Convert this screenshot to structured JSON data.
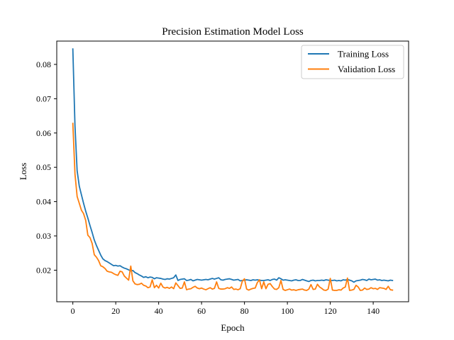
{
  "chart_data": {
    "type": "line",
    "title": "Precision Estimation Model Loss",
    "xlabel": "Epoch",
    "ylabel": "Loss",
    "xlim": [
      -7.5,
      156.5
    ],
    "ylim": [
      0.0108,
      0.0868
    ],
    "xticks": [
      0,
      20,
      40,
      60,
      80,
      100,
      120,
      140
    ],
    "yticks": [
      0.02,
      0.03,
      0.04,
      0.05,
      0.06,
      0.07,
      0.08
    ],
    "xtick_labels": [
      "0",
      "20",
      "40",
      "60",
      "80",
      "100",
      "120",
      "140"
    ],
    "ytick_labels": [
      "0.02",
      "0.03",
      "0.04",
      "0.05",
      "0.06",
      "0.07",
      "0.08"
    ],
    "grid": false,
    "legend_position": "top-right",
    "series": [
      {
        "name": "Training Loss",
        "color": "#1f77b4",
        "x": [
          0,
          1,
          2,
          3,
          4,
          5,
          6,
          7,
          8,
          9,
          10,
          11,
          12,
          13,
          14,
          15,
          16,
          17,
          18,
          19,
          20,
          21,
          22,
          23,
          24,
          25,
          26,
          27,
          28,
          29,
          30,
          31,
          32,
          33,
          34,
          35,
          36,
          37,
          38,
          39,
          40,
          41,
          42,
          43,
          44,
          45,
          46,
          47,
          48,
          49,
          50,
          51,
          52,
          53,
          54,
          55,
          56,
          57,
          58,
          59,
          60,
          61,
          62,
          63,
          64,
          65,
          66,
          67,
          68,
          69,
          70,
          71,
          72,
          73,
          74,
          75,
          76,
          77,
          78,
          79,
          80,
          81,
          82,
          83,
          84,
          85,
          86,
          87,
          88,
          89,
          90,
          91,
          92,
          93,
          94,
          95,
          96,
          97,
          98,
          99,
          100,
          101,
          102,
          103,
          104,
          105,
          106,
          107,
          108,
          109,
          110,
          111,
          112,
          113,
          114,
          115,
          116,
          117,
          118,
          119,
          120,
          121,
          122,
          123,
          124,
          125,
          126,
          127,
          128,
          129,
          130,
          131,
          132,
          133,
          134,
          135,
          136,
          137,
          138,
          139,
          140,
          141,
          142,
          143,
          144,
          145,
          146,
          147,
          148,
          149
        ],
        "values": [
          0.0845,
          0.062,
          0.049,
          0.0445,
          0.042,
          0.0395,
          0.0372,
          0.0352,
          0.033,
          0.031,
          0.0288,
          0.0272,
          0.0258,
          0.0244,
          0.0233,
          0.0228,
          0.0225,
          0.0221,
          0.0217,
          0.0213,
          0.0214,
          0.0212,
          0.0213,
          0.0209,
          0.0206,
          0.0204,
          0.0201,
          0.0198,
          0.0199,
          0.0193,
          0.019,
          0.0186,
          0.0183,
          0.0179,
          0.0181,
          0.0178,
          0.018,
          0.0179,
          0.0175,
          0.0178,
          0.0177,
          0.0176,
          0.0174,
          0.0173,
          0.0175,
          0.0174,
          0.0176,
          0.0178,
          0.0186,
          0.017,
          0.0173,
          0.0174,
          0.0175,
          0.017,
          0.0171,
          0.0173,
          0.0169,
          0.0171,
          0.0173,
          0.0172,
          0.0171,
          0.0172,
          0.0173,
          0.0172,
          0.0174,
          0.0176,
          0.0174,
          0.0176,
          0.0178,
          0.0172,
          0.0171,
          0.0173,
          0.0174,
          0.0175,
          0.0173,
          0.0171,
          0.0172,
          0.0173,
          0.0169,
          0.017,
          0.0171,
          0.0172,
          0.0171,
          0.017,
          0.0172,
          0.0171,
          0.0172,
          0.0171,
          0.017,
          0.017,
          0.0171,
          0.0172,
          0.017,
          0.0173,
          0.0174,
          0.0171,
          0.0178,
          0.0175,
          0.0171,
          0.0172,
          0.0171,
          0.017,
          0.0169,
          0.0171,
          0.0172,
          0.017,
          0.017,
          0.0173,
          0.0171,
          0.0169,
          0.0167,
          0.017,
          0.0171,
          0.0169,
          0.017,
          0.017,
          0.0171,
          0.017,
          0.0172,
          0.0171,
          0.017,
          0.017,
          0.0171,
          0.0169,
          0.017,
          0.0169,
          0.0172,
          0.0171,
          0.0173,
          0.0171,
          0.0169,
          0.0165,
          0.0169,
          0.017,
          0.0171,
          0.0173,
          0.0172,
          0.017,
          0.0174,
          0.0172,
          0.0173,
          0.0174,
          0.0171,
          0.0172,
          0.017,
          0.0171,
          0.017,
          0.0169,
          0.0171,
          0.017
        ]
      },
      {
        "name": "Validation Loss",
        "color": "#ff7f0e",
        "x": [
          0,
          1,
          2,
          3,
          4,
          5,
          6,
          7,
          8,
          9,
          10,
          11,
          12,
          13,
          14,
          15,
          16,
          17,
          18,
          19,
          20,
          21,
          22,
          23,
          24,
          25,
          26,
          27,
          28,
          29,
          30,
          31,
          32,
          33,
          34,
          35,
          36,
          37,
          38,
          39,
          40,
          41,
          42,
          43,
          44,
          45,
          46,
          47,
          48,
          49,
          50,
          51,
          52,
          53,
          54,
          55,
          56,
          57,
          58,
          59,
          60,
          61,
          62,
          63,
          64,
          65,
          66,
          67,
          68,
          69,
          70,
          71,
          72,
          73,
          74,
          75,
          76,
          77,
          78,
          79,
          80,
          81,
          82,
          83,
          84,
          85,
          86,
          87,
          88,
          89,
          90,
          91,
          92,
          93,
          94,
          95,
          96,
          97,
          98,
          99,
          100,
          101,
          102,
          103,
          104,
          105,
          106,
          107,
          108,
          109,
          110,
          111,
          112,
          113,
          114,
          115,
          116,
          117,
          118,
          119,
          120,
          121,
          122,
          123,
          124,
          125,
          126,
          127,
          128,
          129,
          130,
          131,
          132,
          133,
          134,
          135,
          136,
          137,
          138,
          139,
          140,
          141,
          142,
          143,
          144,
          145,
          146,
          147,
          148,
          149
        ],
        "values": [
          0.0628,
          0.048,
          0.0415,
          0.0395,
          0.0375,
          0.0365,
          0.0345,
          0.0302,
          0.0295,
          0.0278,
          0.0245,
          0.0238,
          0.0228,
          0.0213,
          0.021,
          0.0205,
          0.0197,
          0.0195,
          0.0194,
          0.019,
          0.0187,
          0.0185,
          0.0197,
          0.0195,
          0.0183,
          0.0177,
          0.0171,
          0.0212,
          0.0169,
          0.016,
          0.0158,
          0.0159,
          0.0162,
          0.0156,
          0.0154,
          0.0149,
          0.0151,
          0.0172,
          0.0149,
          0.0156,
          0.0148,
          0.0162,
          0.0151,
          0.0148,
          0.015,
          0.0147,
          0.0151,
          0.0146,
          0.0163,
          0.0155,
          0.0147,
          0.0148,
          0.0166,
          0.0143,
          0.0145,
          0.0146,
          0.015,
          0.0153,
          0.0148,
          0.0146,
          0.0148,
          0.0145,
          0.0143,
          0.0146,
          0.0149,
          0.0145,
          0.0147,
          0.0166,
          0.0147,
          0.0145,
          0.0145,
          0.0146,
          0.0149,
          0.0147,
          0.0151,
          0.0144,
          0.0145,
          0.0143,
          0.0146,
          0.0168,
          0.0175,
          0.0145,
          0.0142,
          0.0145,
          0.0147,
          0.0148,
          0.0164,
          0.0172,
          0.0146,
          0.0166,
          0.0146,
          0.0159,
          0.0161,
          0.0152,
          0.0145,
          0.0144,
          0.0149,
          0.017,
          0.0144,
          0.0141,
          0.0143,
          0.0145,
          0.0142,
          0.0143,
          0.0141,
          0.0143,
          0.0144,
          0.0145,
          0.0142,
          0.0141,
          0.0145,
          0.0158,
          0.0144,
          0.0145,
          0.0159,
          0.0151,
          0.0147,
          0.0142,
          0.0141,
          0.0145,
          0.0176,
          0.0142,
          0.0141,
          0.0141,
          0.0143,
          0.0142,
          0.0148,
          0.0151,
          0.0177,
          0.0141,
          0.0142,
          0.0144,
          0.0156,
          0.0151,
          0.0141,
          0.0142,
          0.0148,
          0.0144,
          0.0145,
          0.0149,
          0.0146,
          0.0147,
          0.0144,
          0.0149,
          0.0148,
          0.0147,
          0.0144,
          0.0153,
          0.0143,
          0.0142
        ]
      }
    ]
  }
}
